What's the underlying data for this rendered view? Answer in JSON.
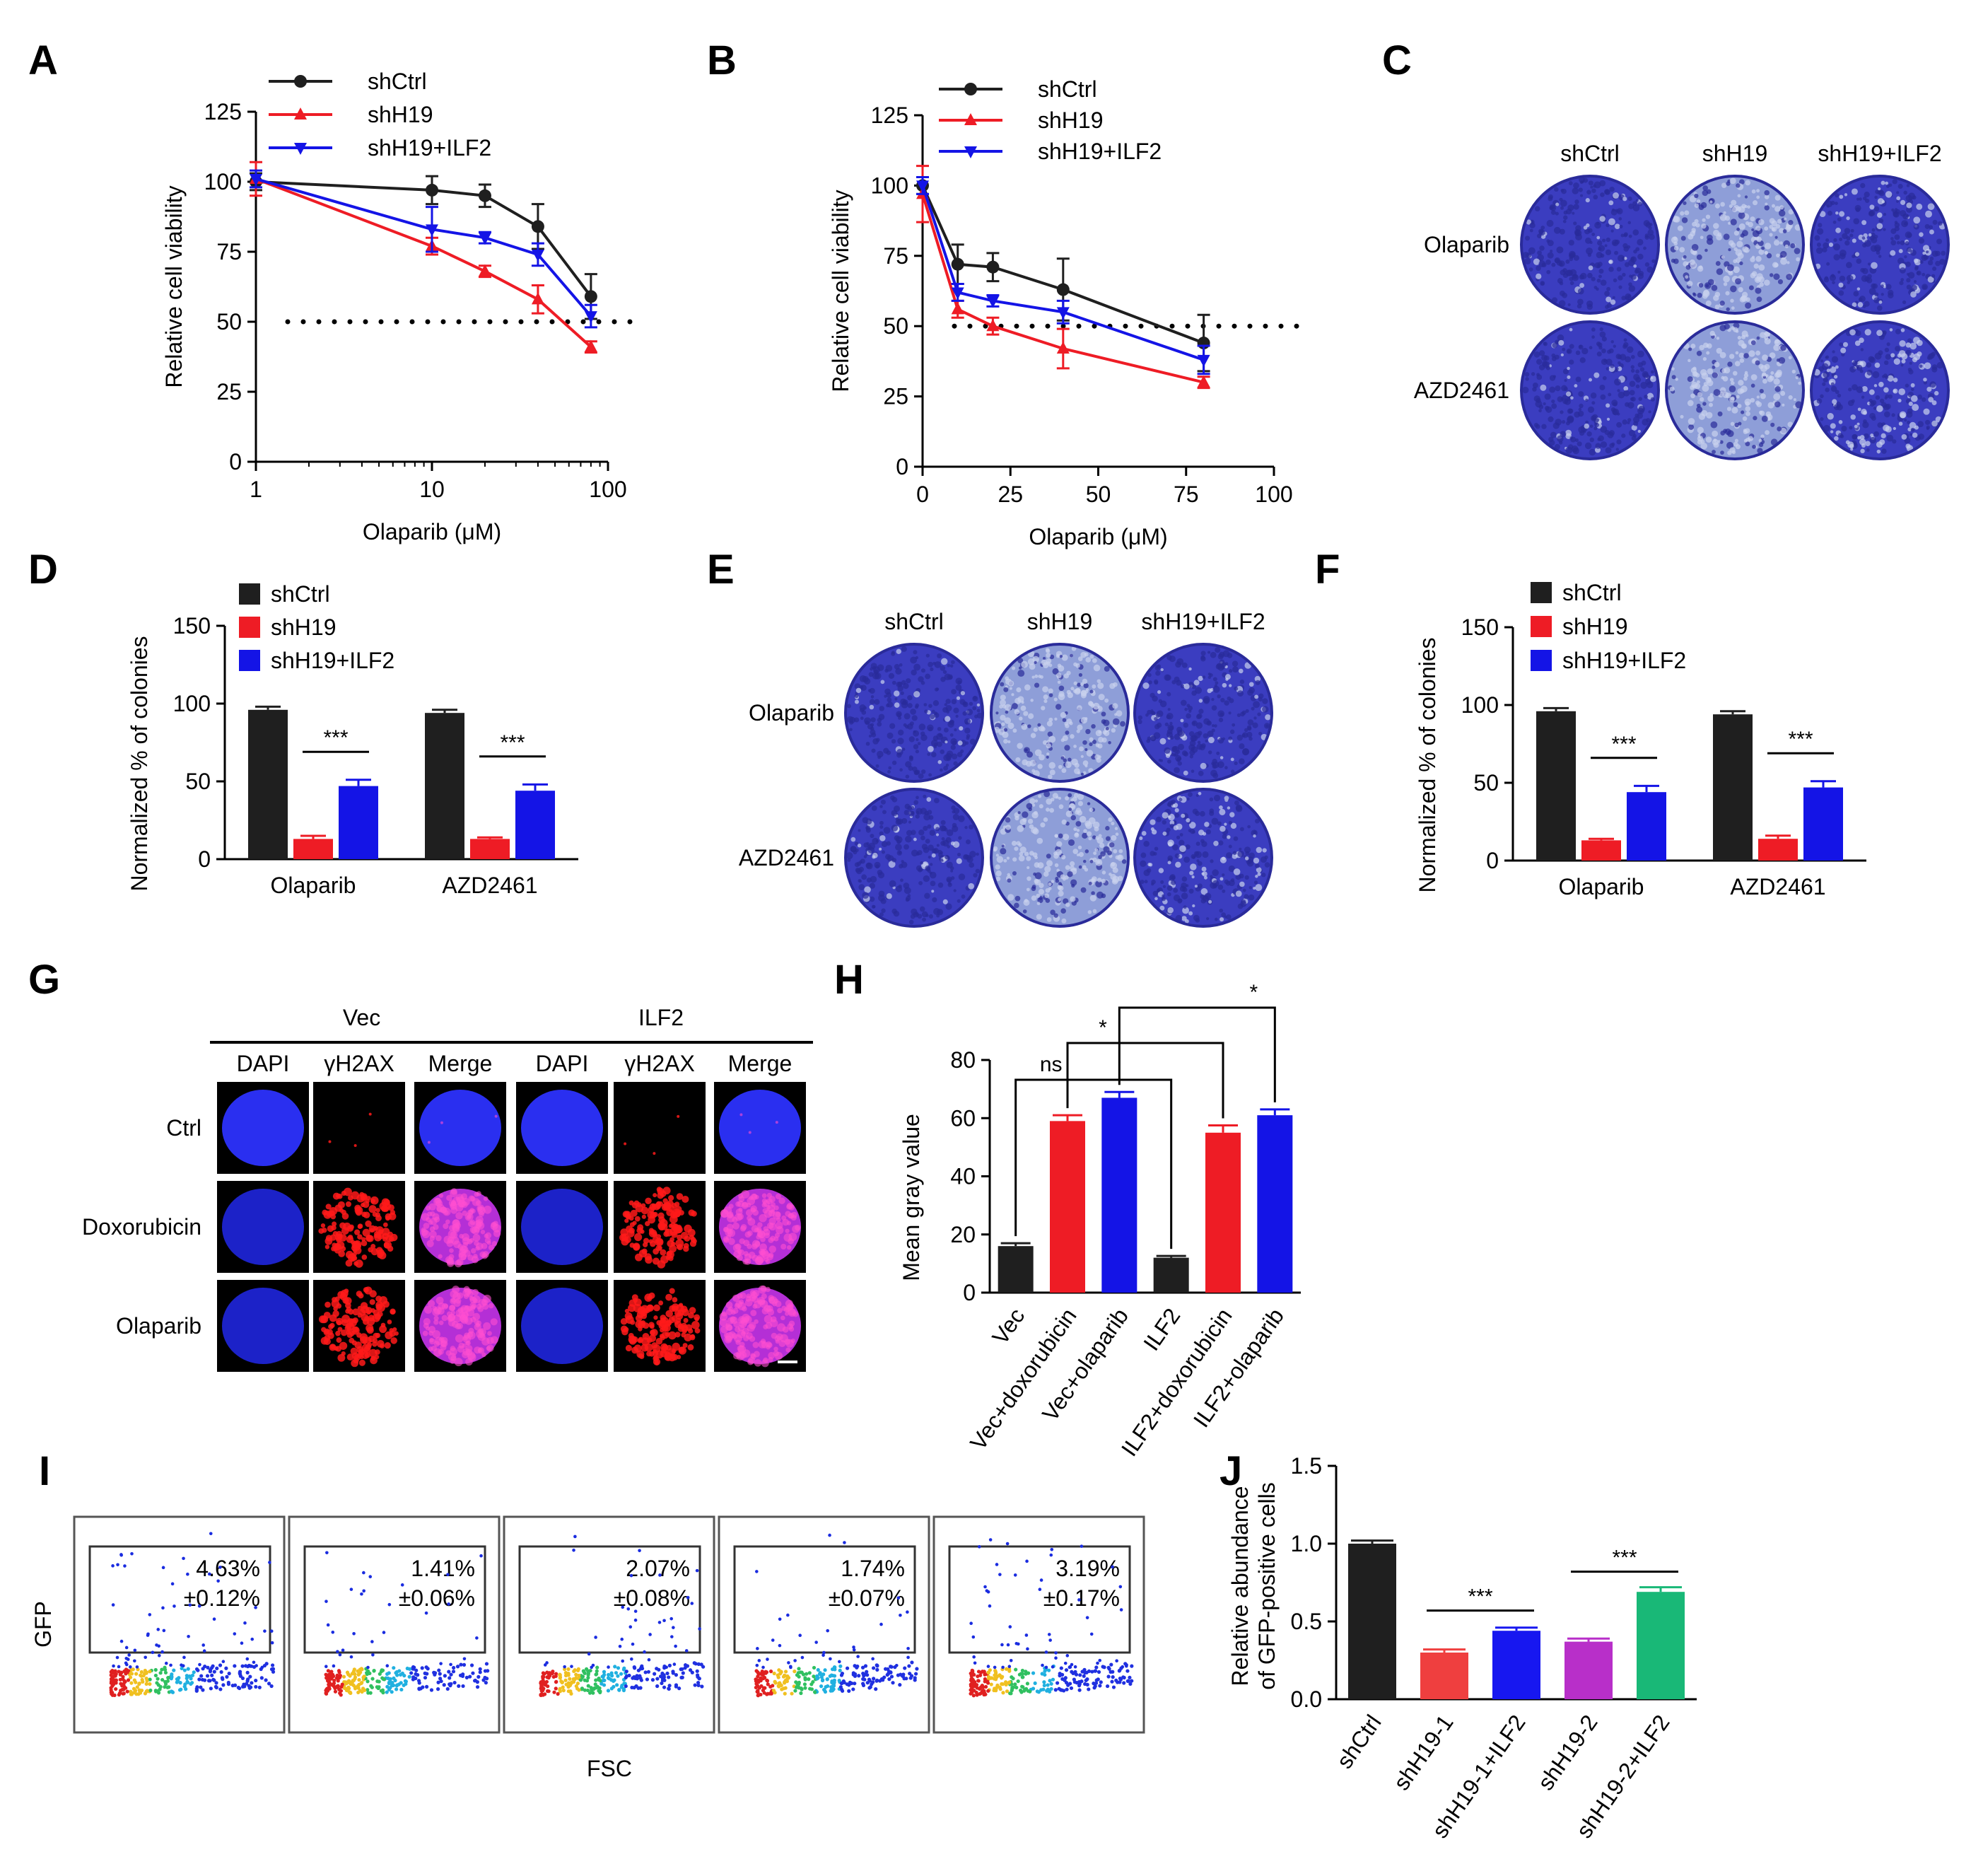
{
  "panels": {
    "A": "A",
    "B": "B",
    "C": "C",
    "D": "D",
    "E": "E",
    "F": "F",
    "G": "G",
    "H": "H",
    "I": "I",
    "J": "J"
  },
  "colors": {
    "shCtrl": "#1f1f1f",
    "shH19": "#ee1c25",
    "shH19_ILF2": "#1414e6",
    "shH19_1": "#ef3f3f",
    "shH19_1_ILF2": "#1717f0",
    "shH19_2": "#b82fc9",
    "shH19_2_ILF2": "#19b877",
    "crystal_violet": "#3a3ab8",
    "crystal_violet_light": "#8a9ad8"
  },
  "plates_C": {
    "columns": [
      "shCtrl",
      "shH19",
      "shH19+ILF2"
    ],
    "rows": [
      "Olaparib",
      "AZD2461"
    ],
    "density": [
      [
        0.9,
        0.35,
        0.75
      ],
      [
        0.9,
        0.25,
        0.6
      ]
    ]
  },
  "plates_E": {
    "columns": [
      "shCtrl",
      "shH19",
      "shH19+ILF2"
    ],
    "rows": [
      "Olaparib",
      "AZD2461"
    ],
    "density": [
      [
        0.9,
        0.3,
        0.8
      ],
      [
        0.85,
        0.3,
        0.7
      ]
    ]
  },
  "micrographs_G": {
    "groups": [
      "Vec",
      "ILF2"
    ],
    "channels": [
      "DAPI",
      "γH2AX",
      "Merge"
    ],
    "rows": [
      "Ctrl",
      "Doxorubicin",
      "Olaparib"
    ]
  },
  "flow_I": {
    "ylabel": "GFP",
    "xlabel": "FSC",
    "panels": [
      {
        "pct": "4.63%",
        "sd": "±0.12%",
        "density": 1.0
      },
      {
        "pct": "1.41%",
        "sd": "±0.06%",
        "density": 0.45
      },
      {
        "pct": "2.07%",
        "sd": "±0.08%",
        "density": 0.6
      },
      {
        "pct": "1.74%",
        "sd": "±0.07%",
        "density": 0.5
      },
      {
        "pct": "3.19%",
        "sd": "±0.17%",
        "density": 0.8
      }
    ]
  },
  "chart_data": [
    {
      "panel": "A",
      "type": "line",
      "xscale": "log",
      "xlabel": "Olaparib (μM)",
      "ylabel": "Relative cell viability",
      "xlim": [
        1,
        100
      ],
      "ylim": [
        0,
        125
      ],
      "xticks": [
        1,
        10,
        100
      ],
      "yticks": [
        0,
        25,
        50,
        75,
        100,
        125
      ],
      "reference_line": 50,
      "series": [
        {
          "name": "shCtrl",
          "color": "#1f1f1f",
          "marker": "circle",
          "x": [
            1,
            10,
            20,
            40,
            80
          ],
          "y": [
            100,
            97,
            95,
            84,
            59
          ],
          "err": [
            3,
            5,
            4,
            8,
            8
          ]
        },
        {
          "name": "shH19",
          "color": "#ee1c25",
          "marker": "triangle-up",
          "x": [
            1,
            10,
            20,
            40,
            80
          ],
          "y": [
            101,
            77,
            68,
            58,
            41
          ],
          "err": [
            6,
            3,
            2,
            5,
            2
          ]
        },
        {
          "name": "shH19+ILF2",
          "color": "#1414e6",
          "marker": "triangle-down",
          "x": [
            1,
            10,
            20,
            40,
            80
          ],
          "y": [
            101,
            83,
            80,
            74,
            52
          ],
          "err": [
            3,
            8,
            2,
            4,
            4
          ]
        }
      ]
    },
    {
      "panel": "B",
      "type": "line",
      "xlabel": "Olaparib (μM)",
      "ylabel": "Relative cell viability",
      "xlim": [
        0,
        100
      ],
      "ylim": [
        0,
        125
      ],
      "xticks": [
        0,
        25,
        50,
        75,
        100
      ],
      "yticks": [
        0,
        25,
        50,
        75,
        100,
        125
      ],
      "reference_line": 50,
      "series": [
        {
          "name": "shCtrl",
          "color": "#1f1f1f",
          "marker": "circle",
          "x": [
            0,
            10,
            20,
            40,
            80
          ],
          "y": [
            100,
            72,
            71,
            63,
            44
          ],
          "err": [
            3,
            7,
            5,
            11,
            10
          ]
        },
        {
          "name": "shH19",
          "color": "#ee1c25",
          "marker": "triangle-up",
          "x": [
            0,
            10,
            20,
            40,
            80
          ],
          "y": [
            97,
            56,
            50,
            42,
            30
          ],
          "err": [
            10,
            3,
            3,
            7,
            2
          ]
        },
        {
          "name": "shH19+ILF2",
          "color": "#1414e6",
          "marker": "triangle-down",
          "x": [
            0,
            10,
            20,
            40,
            80
          ],
          "y": [
            100,
            62,
            59,
            55,
            38
          ],
          "err": [
            3,
            3,
            2,
            4,
            5
          ]
        }
      ]
    },
    {
      "panel": "D",
      "type": "bar",
      "ylabel": "Normalized % of colonies",
      "ylim": [
        0,
        150
      ],
      "yticks": [
        0,
        50,
        100,
        150
      ],
      "categories": [
        "Olaparib",
        "AZD2461"
      ],
      "series": [
        {
          "name": "shCtrl",
          "color": "#1f1f1f",
          "values": [
            96,
            94
          ],
          "err": [
            2,
            2
          ]
        },
        {
          "name": "shH19",
          "color": "#ee1c25",
          "values": [
            13,
            13
          ],
          "err": [
            2,
            1
          ]
        },
        {
          "name": "shH19+ILF2",
          "color": "#1414e6",
          "values": [
            47,
            44
          ],
          "err": [
            4,
            4
          ]
        }
      ],
      "significance": [
        "***",
        "***"
      ]
    },
    {
      "panel": "F",
      "type": "bar",
      "ylabel": "Normalized % of colonies",
      "ylim": [
        0,
        150
      ],
      "yticks": [
        0,
        50,
        100,
        150
      ],
      "categories": [
        "Olaparib",
        "AZD2461"
      ],
      "series": [
        {
          "name": "shCtrl",
          "color": "#1f1f1f",
          "values": [
            96,
            94
          ],
          "err": [
            2,
            2
          ]
        },
        {
          "name": "shH19",
          "color": "#ee1c25",
          "values": [
            13,
            14
          ],
          "err": [
            1,
            2
          ]
        },
        {
          "name": "shH19+ILF2",
          "color": "#1414e6",
          "values": [
            44,
            47
          ],
          "err": [
            4,
            4
          ]
        }
      ],
      "significance": [
        "***",
        "***"
      ]
    },
    {
      "panel": "H",
      "type": "bar",
      "ylabel": "Mean gray value",
      "ylim": [
        0,
        80
      ],
      "yticks": [
        0,
        20,
        40,
        60,
        80
      ],
      "categories": [
        "Vec",
        "Vec+doxorubicin",
        "Vec+olaparib",
        "ILF2",
        "ILF2+doxorubicin",
        "ILF2+olaparib"
      ],
      "values": [
        16,
        59,
        67,
        12,
        55,
        61
      ],
      "err": [
        1,
        2,
        2,
        0.6,
        2.5,
        2
      ],
      "colors": [
        "#1f1f1f",
        "#ee1c25",
        "#1414e6",
        "#1f1f1f",
        "#ee1c25",
        "#1414e6"
      ],
      "comparisons": [
        {
          "from": "Vec",
          "to": "ILF2",
          "label": "ns"
        },
        {
          "from": "Vec+doxorubicin",
          "to": "ILF2+doxorubicin",
          "label": "*"
        },
        {
          "from": "Vec+olaparib",
          "to": "ILF2+olaparib",
          "label": "*"
        }
      ]
    },
    {
      "panel": "J",
      "type": "bar",
      "ylabel": "Relative abundance of GFP-positive cells",
      "ylabel_lines": [
        "Relative abundance",
        "of GFP-positive cells"
      ],
      "ylim": [
        0,
        1.5
      ],
      "yticks": [
        "0.0",
        "0.5",
        "1.0",
        "1.5"
      ],
      "categories": [
        "shCtrl",
        "shH19-1",
        "shH19-1+ILF2",
        "shH19-2",
        "shH19-2+ILF2"
      ],
      "values": [
        1.0,
        0.3,
        0.44,
        0.37,
        0.69
      ],
      "err": [
        0.02,
        0.02,
        0.02,
        0.02,
        0.03
      ],
      "colors": [
        "#1f1f1f",
        "#ef3f3f",
        "#1717f0",
        "#b82fc9",
        "#19b877"
      ],
      "comparisons": [
        {
          "from": "shH19-1",
          "to": "shH19-1+ILF2",
          "label": "***"
        },
        {
          "from": "shH19-2",
          "to": "shH19-2+ILF2",
          "label": "***"
        }
      ]
    }
  ]
}
